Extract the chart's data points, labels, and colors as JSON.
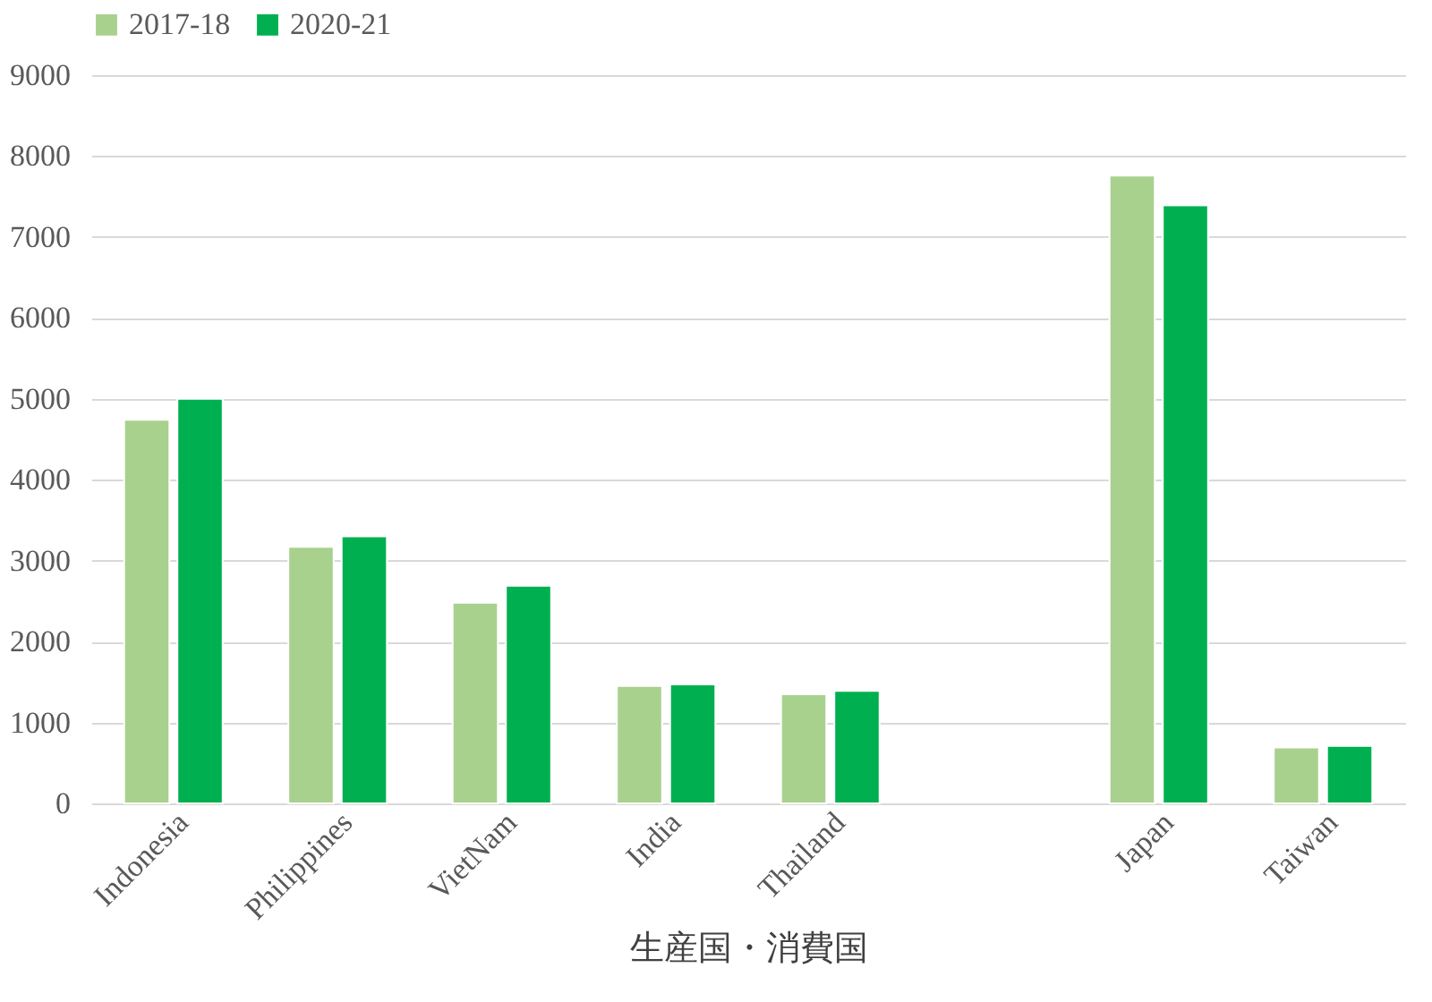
{
  "chart_data": {
    "type": "bar",
    "xlabel": "生産国・消費国",
    "categories": [
      "Indonesia",
      "Philippines",
      "VietNam",
      "India",
      "Thailand",
      null,
      "Japan",
      "Taiwan"
    ],
    "series": [
      {
        "name": "2017-18",
        "color": "#a9d18e",
        "values": [
          4740,
          3170,
          2480,
          1450,
          1350,
          null,
          7760,
          690
        ]
      },
      {
        "name": "2020-21",
        "color": "#00b050",
        "values": [
          5000,
          3300,
          2690,
          1470,
          1390,
          null,
          7390,
          710
        ]
      }
    ],
    "ylim": [
      0,
      9000
    ],
    "yticks": [
      0,
      1000,
      2000,
      3000,
      4000,
      5000,
      6000,
      7000,
      8000,
      9000
    ],
    "grid": "y",
    "legend": "top"
  }
}
